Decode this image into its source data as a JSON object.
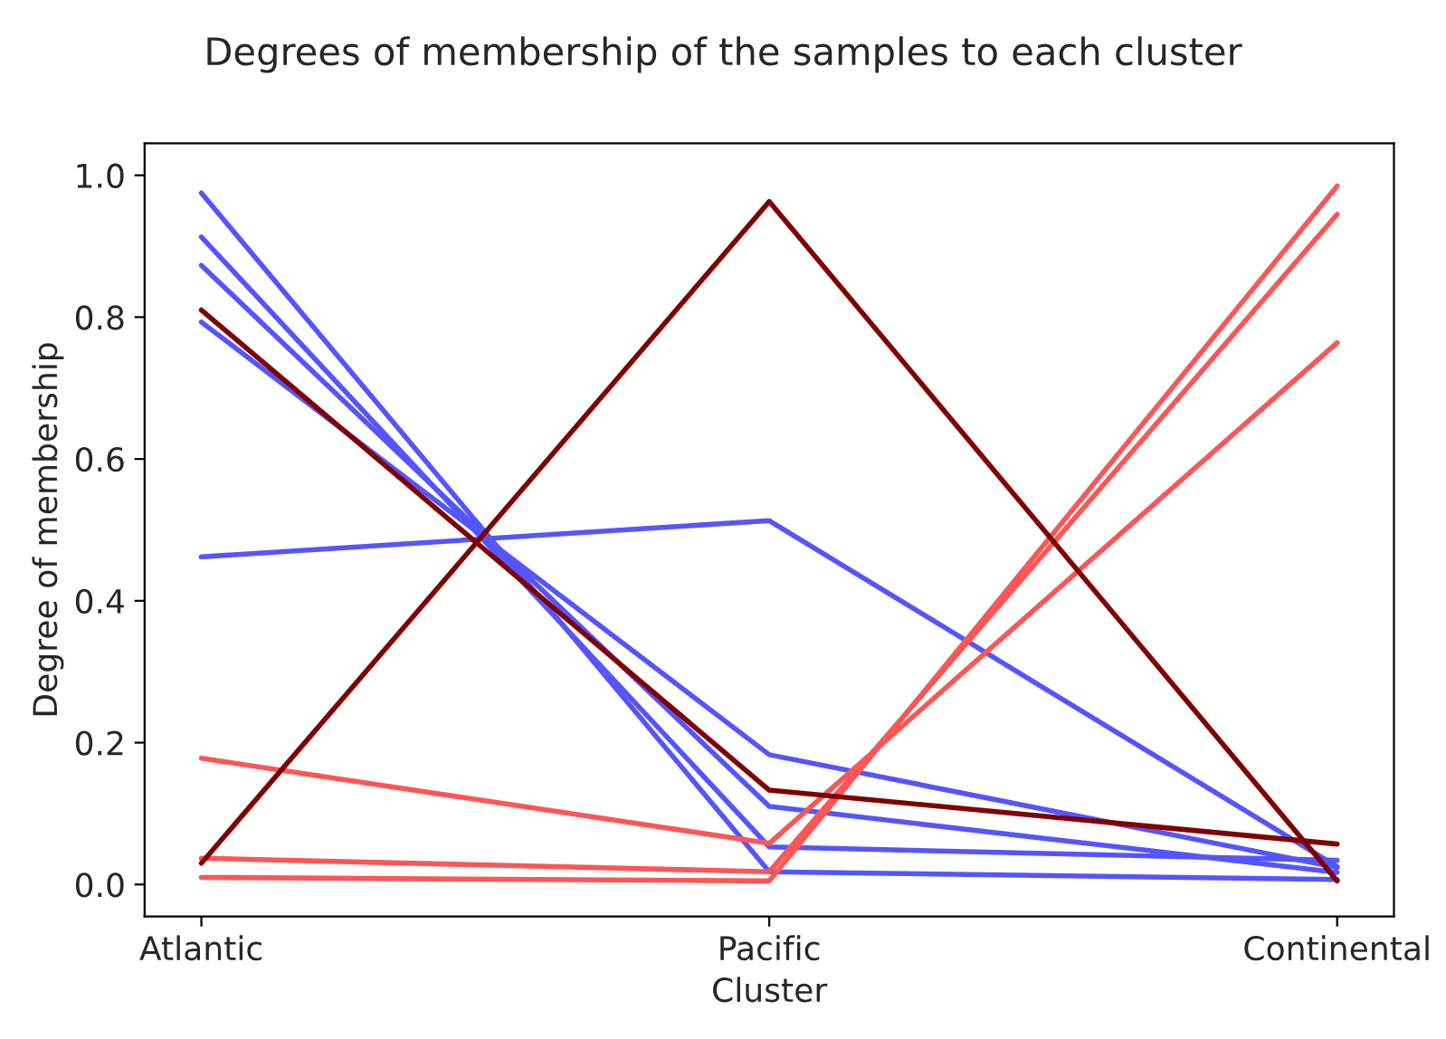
{
  "chart_data": {
    "type": "line",
    "title": "Degrees of membership of the samples to each cluster",
    "xlabel": "Cluster",
    "ylabel": "Degree of membership",
    "categories": [
      "Atlantic",
      "Pacific",
      "Continental"
    ],
    "series": [
      {
        "color": "#5555ff",
        "values": [
          0.975,
          0.018,
          0.007
        ]
      },
      {
        "color": "#5555ff",
        "values": [
          0.913,
          0.053,
          0.034
        ]
      },
      {
        "color": "#5555ff",
        "values": [
          0.873,
          0.11,
          0.017
        ]
      },
      {
        "color": "#5555ff",
        "values": [
          0.793,
          0.183,
          0.024
        ]
      },
      {
        "color": "#5555ff",
        "values": [
          0.462,
          0.513,
          0.025
        ]
      },
      {
        "color": "#ff5555",
        "values": [
          0.178,
          0.058,
          0.764
        ]
      },
      {
        "color": "#ff5555",
        "values": [
          0.037,
          0.018,
          0.945
        ]
      },
      {
        "color": "#ff5555",
        "values": [
          0.01,
          0.005,
          0.985
        ]
      },
      {
        "color": "#800000",
        "values": [
          0.81,
          0.133,
          0.057
        ]
      },
      {
        "color": "#800000",
        "values": [
          0.03,
          0.963,
          0.005
        ]
      }
    ],
    "ylim": [
      -0.045,
      1.045
    ],
    "yticks": [
      {
        "value": 0,
        "label": "0.0"
      },
      {
        "value": 0.2,
        "label": "0.2"
      },
      {
        "value": 0.4,
        "label": "0.4"
      },
      {
        "value": 0.6,
        "label": "0.6"
      },
      {
        "value": 0.8,
        "label": "0.8"
      },
      {
        "value": 1,
        "label": "1.0"
      }
    ],
    "grid": false,
    "legend": false
  }
}
